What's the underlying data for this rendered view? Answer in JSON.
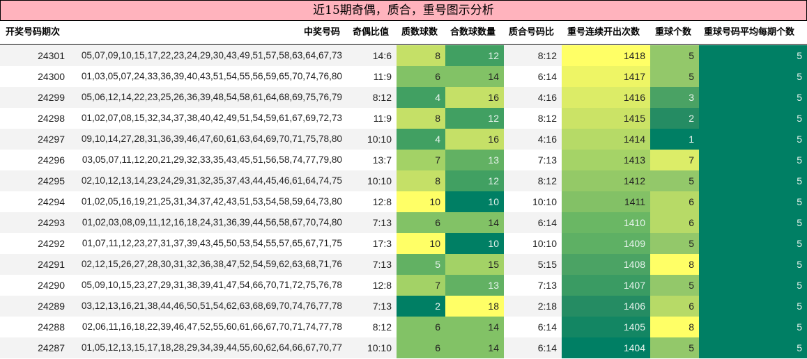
{
  "title": "近15期奇偶，质合，重号图示分析",
  "headers": {
    "period": "开奖号码期次",
    "numbers": "中奖号码",
    "odd_even": "奇偶比值",
    "prime_count": "质数球数",
    "composite_count": "合数球数量",
    "prime_composite_ratio": "质合号码比",
    "repeat_streak": "重号连续开出次数",
    "repeat_count": "重球个数",
    "repeat_avg": "重球号码平均每期个数"
  },
  "rows": [
    {
      "period": "24301",
      "numbers": "05,07,09,10,15,17,22,23,24,29,30,43,49,51,57,58,63,64,67,73",
      "odd_even": "14:6",
      "prime": "8",
      "composite": "12",
      "pc_ratio": "8:12",
      "streak": "1418",
      "repeat": "5",
      "avg": "5",
      "prime_bg": "#c5e067",
      "comp_bg": "#41a062",
      "streak_bg": "#ffff66",
      "repeat_bg": "#93c86a"
    },
    {
      "period": "24300",
      "numbers": "01,03,05,07,24,33,36,39,40,43,51,54,55,56,59,65,70,74,76,80",
      "odd_even": "11:9",
      "prime": "6",
      "composite": "14",
      "pc_ratio": "6:14",
      "streak": "1417",
      "repeat": "5",
      "avg": "5",
      "prime_bg": "#82c266",
      "comp_bg": "#82c266",
      "streak_bg": "#eef565",
      "repeat_bg": "#93c86a"
    },
    {
      "period": "24299",
      "numbers": "05,06,12,14,22,23,25,26,36,39,48,54,58,61,64,68,69,75,76,79",
      "odd_even": "8:12",
      "prime": "4",
      "composite": "16",
      "pc_ratio": "4:16",
      "streak": "1416",
      "repeat": "3",
      "avg": "5",
      "prime_bg": "#41a062",
      "comp_bg": "#c5e067",
      "streak_bg": "#dcec67",
      "repeat_bg": "#4aa264"
    },
    {
      "period": "24298",
      "numbers": "01,02,07,08,15,32,34,37,38,40,42,49,51,54,59,61,67,69,72,73",
      "odd_even": "11:9",
      "prime": "8",
      "composite": "12",
      "pc_ratio": "8:12",
      "streak": "1415",
      "repeat": "2",
      "avg": "5",
      "prime_bg": "#c5e067",
      "comp_bg": "#41a062",
      "streak_bg": "#cbe366",
      "repeat_bg": "#258c63"
    },
    {
      "period": "24297",
      "numbers": "09,10,14,27,28,31,36,39,46,47,60,61,63,64,69,70,71,75,78,80",
      "odd_even": "10:10",
      "prime": "4",
      "composite": "16",
      "pc_ratio": "4:16",
      "streak": "1414",
      "repeat": "1",
      "avg": "5",
      "prime_bg": "#41a062",
      "comp_bg": "#c5e067",
      "streak_bg": "#b6da67",
      "repeat_bg": "#007f64"
    },
    {
      "period": "24296",
      "numbers": "03,05,07,11,12,20,21,29,32,33,35,43,45,51,56,58,74,77,79,80",
      "odd_even": "13:7",
      "prime": "7",
      "composite": "13",
      "pc_ratio": "7:13",
      "streak": "1413",
      "repeat": "7",
      "avg": "5",
      "prime_bg": "#a3d266",
      "comp_bg": "#62b163",
      "streak_bg": "#a5d367",
      "repeat_bg": "#dced68"
    },
    {
      "period": "24295",
      "numbers": "02,10,12,13,14,23,24,29,31,32,35,37,43,44,45,46,61,64,74,75",
      "odd_even": "10:10",
      "prime": "8",
      "composite": "12",
      "pc_ratio": "8:12",
      "streak": "1412",
      "repeat": "5",
      "avg": "5",
      "prime_bg": "#c5e067",
      "comp_bg": "#41a062",
      "streak_bg": "#94c967",
      "repeat_bg": "#93c86a"
    },
    {
      "period": "24294",
      "numbers": "01,02,05,16,19,21,25,31,34,37,42,43,51,53,54,58,59,64,73,80",
      "odd_even": "12:8",
      "prime": "10",
      "composite": "10",
      "pc_ratio": "10:10",
      "streak": "1411",
      "repeat": "6",
      "avg": "5",
      "prime_bg": "#ffff66",
      "comp_bg": "#007f64",
      "streak_bg": "#83c166",
      "repeat_bg": "#b7da67"
    },
    {
      "period": "24293",
      "numbers": "01,02,03,08,09,11,12,16,18,24,31,36,39,44,56,58,67,70,74,80",
      "odd_even": "7:13",
      "prime": "6",
      "composite": "14",
      "pc_ratio": "6:14",
      "streak": "1410",
      "repeat": "6",
      "avg": "5",
      "prime_bg": "#82c266",
      "comp_bg": "#82c266",
      "streak_bg": "#6ab764",
      "repeat_bg": "#b7da67"
    },
    {
      "period": "24292",
      "numbers": "01,07,11,12,23,27,31,37,39,43,45,50,53,54,55,57,65,67,71,75",
      "odd_even": "17:3",
      "prime": "10",
      "composite": "10",
      "pc_ratio": "10:10",
      "streak": "1409",
      "repeat": "5",
      "avg": "5",
      "prime_bg": "#ffff66",
      "comp_bg": "#007f64",
      "streak_bg": "#5eb064",
      "repeat_bg": "#93c86a"
    },
    {
      "period": "24291",
      "numbers": "02,12,15,26,27,28,30,31,32,36,38,47,52,54,59,62,63,68,71,76",
      "odd_even": "7:13",
      "prime": "5",
      "composite": "15",
      "pc_ratio": "5:15",
      "streak": "1408",
      "repeat": "8",
      "avg": "5",
      "prime_bg": "#62b163",
      "comp_bg": "#a3d266",
      "streak_bg": "#4ba364",
      "repeat_bg": "#ffff66"
    },
    {
      "period": "24290",
      "numbers": "05,09,10,15,23,27,29,31,38,39,41,47,54,66,70,71,72,75,76,78",
      "odd_even": "12:8",
      "prime": "7",
      "composite": "13",
      "pc_ratio": "7:13",
      "streak": "1407",
      "repeat": "5",
      "avg": "5",
      "prime_bg": "#a3d266",
      "comp_bg": "#62b163",
      "streak_bg": "#3a9b63",
      "repeat_bg": "#93c86a"
    },
    {
      "period": "24289",
      "numbers": "03,12,13,16,21,38,44,46,50,51,54,62,63,68,69,70,74,76,77,78",
      "odd_even": "7:13",
      "prime": "2",
      "composite": "18",
      "pc_ratio": "2:18",
      "streak": "1406",
      "repeat": "6",
      "avg": "5",
      "prime_bg": "#007f64",
      "comp_bg": "#ffff66",
      "streak_bg": "#258c63",
      "repeat_bg": "#b7da67"
    },
    {
      "period": "24288",
      "numbers": "02,06,11,16,18,22,39,46,47,52,55,60,61,66,67,70,71,74,77,78",
      "odd_even": "8:12",
      "prime": "6",
      "composite": "14",
      "pc_ratio": "6:14",
      "streak": "1405",
      "repeat": "8",
      "avg": "5",
      "prime_bg": "#82c266",
      "comp_bg": "#82c266",
      "streak_bg": "#138663",
      "repeat_bg": "#ffff66"
    },
    {
      "period": "24287",
      "numbers": "01,05,12,13,15,17,18,28,29,34,39,44,55,60,62,64,66,67,70,77",
      "odd_even": "10:10",
      "prime": "6",
      "composite": "14",
      "pc_ratio": "6:14",
      "streak": "1404",
      "repeat": "5",
      "avg": "5",
      "prime_bg": "#82c266",
      "comp_bg": "#82c266",
      "streak_bg": "#007f64",
      "repeat_bg": "#93c86a"
    }
  ],
  "avg_bg": "#007f64",
  "colors": {
    "title_bg": "#ffb3bd",
    "row_alt": "#f3f3f3",
    "dark_text_on": [
      "#007f64",
      "#138663",
      "#258c63",
      "#3a9b63",
      "#41a062",
      "#4aa264",
      "#4ba364",
      "#5eb064",
      "#62b163",
      "#6ab764"
    ]
  }
}
